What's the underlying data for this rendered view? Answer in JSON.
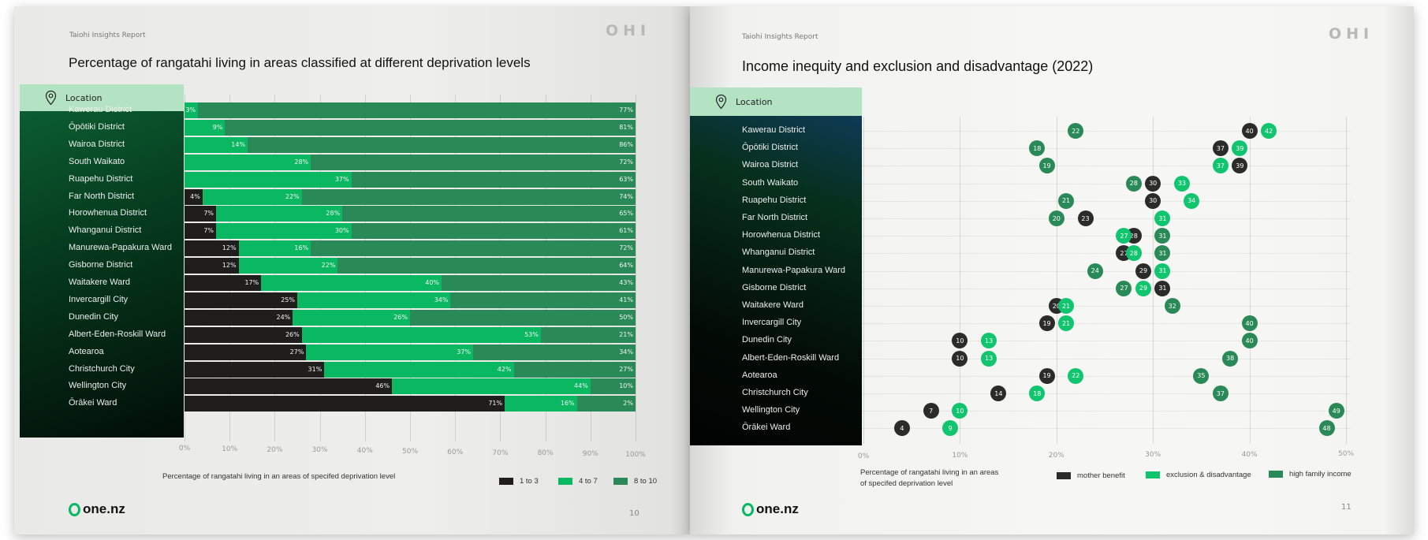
{
  "pages": [
    {
      "header": "Taiohi Insights Report",
      "logo": "OHI",
      "title": "Percentage of rangatahi living in areas classified at different deprivation levels",
      "location_label": "Location",
      "caption": "Percentage of rangatahi living in an areas of specifed deprivation level",
      "brand": "one.nz",
      "page_number": "10"
    },
    {
      "header": "Taiohi Insights Report",
      "logo": "OHI",
      "title": "Income inequity and exclusion and disadvantage (2022)",
      "location_label": "Location",
      "caption_line1": "Percentage of rangatahi living in an areas",
      "caption_line2": "of specifed deprivation level",
      "brand": "one.nz",
      "page_number": "11"
    }
  ],
  "chart_data": [
    {
      "type": "bar",
      "stacked": true,
      "orientation": "horizontal",
      "title": "Percentage of rangatahi living in areas classified at different deprivation levels",
      "xlabel": "Percentage of rangatahi living in an areas of specifed deprivation level",
      "xlim": [
        0,
        100
      ],
      "xticks": [
        "0%",
        "10%",
        "20%",
        "30%",
        "40%",
        "50%",
        "60%",
        "70%",
        "80%",
        "90%",
        "100%"
      ],
      "legend_position": "bottom-right",
      "categories": [
        "Kawerau District",
        "Ōpōtiki District",
        "Wairoa District",
        "South Waikato",
        "Ruapehu District",
        "Far North District",
        "Horowhenua District",
        "Whanganui District",
        "Manurewa-Papakura Ward",
        "Gisborne District",
        "Waitakere Ward",
        "Invercargill City",
        "Dunedin City",
        "Albert-Eden-Roskill Ward",
        "Aotearoa",
        "Christchurch City",
        "Wellington City",
        "Ōrākei Ward"
      ],
      "series": [
        {
          "name": "1 to 3",
          "color": "#1f1e1c",
          "values": [
            null,
            null,
            null,
            null,
            null,
            4,
            7,
            7,
            12,
            12,
            17,
            25,
            24,
            26,
            27,
            31,
            46,
            71
          ]
        },
        {
          "name": "4 to 7",
          "color": "#0bb862",
          "values": [
            3,
            9,
            14,
            28,
            37,
            22,
            28,
            30,
            16,
            22,
            40,
            34,
            26,
            53,
            37,
            42,
            44,
            16
          ]
        },
        {
          "name": "8 to 10",
          "color": "#2a8a57",
          "values": [
            77,
            81,
            86,
            72,
            63,
            74,
            65,
            61,
            72,
            64,
            43,
            41,
            50,
            21,
            34,
            27,
            10,
            2
          ]
        }
      ]
    },
    {
      "type": "scatter",
      "subtype": "dot-plot",
      "title": "Income inequity and exclusion and disadvantage (2022)",
      "xlabel": "Percentage of rangatahi living in an areas of specifed deprivation level",
      "xlim": [
        0,
        50
      ],
      "xticks": [
        "0%",
        "10%",
        "20%",
        "30%",
        "40%",
        "50%"
      ],
      "legend_position": "bottom",
      "categories": [
        "Kawerau District",
        "Ōpōtiki District",
        "Wairoa District",
        "South Waikato",
        "Ruapehu District",
        "Far North District",
        "Horowhenua District",
        "Whanganui District",
        "Manurewa-Papakura Ward",
        "Gisborne District",
        "Waitakere Ward",
        "Invercargill City",
        "Dunedin City",
        "Albert-Eden-Roskill Ward",
        "Aotearoa",
        "Christchurch City",
        "Wellington City",
        "Ōrākei Ward"
      ],
      "series": [
        {
          "name": "mother benefit",
          "color": "#2b2b2a",
          "values": [
            40,
            37,
            39,
            30,
            30,
            23,
            28,
            27,
            29,
            31,
            20,
            19,
            10,
            10,
            19,
            14,
            7,
            4
          ]
        },
        {
          "name": "exclusion & disadvantage",
          "color": "#11c56f",
          "values": [
            42,
            39,
            37,
            33,
            34,
            31,
            27,
            28,
            31,
            29,
            21,
            21,
            13,
            13,
            22,
            18,
            10,
            9
          ]
        },
        {
          "name": "high family income",
          "color": "#2a8a57",
          "values": [
            22,
            18,
            19,
            28,
            21,
            20,
            31,
            31,
            24,
            27,
            32,
            40,
            40,
            38,
            35,
            37,
            49,
            48
          ]
        }
      ]
    }
  ]
}
